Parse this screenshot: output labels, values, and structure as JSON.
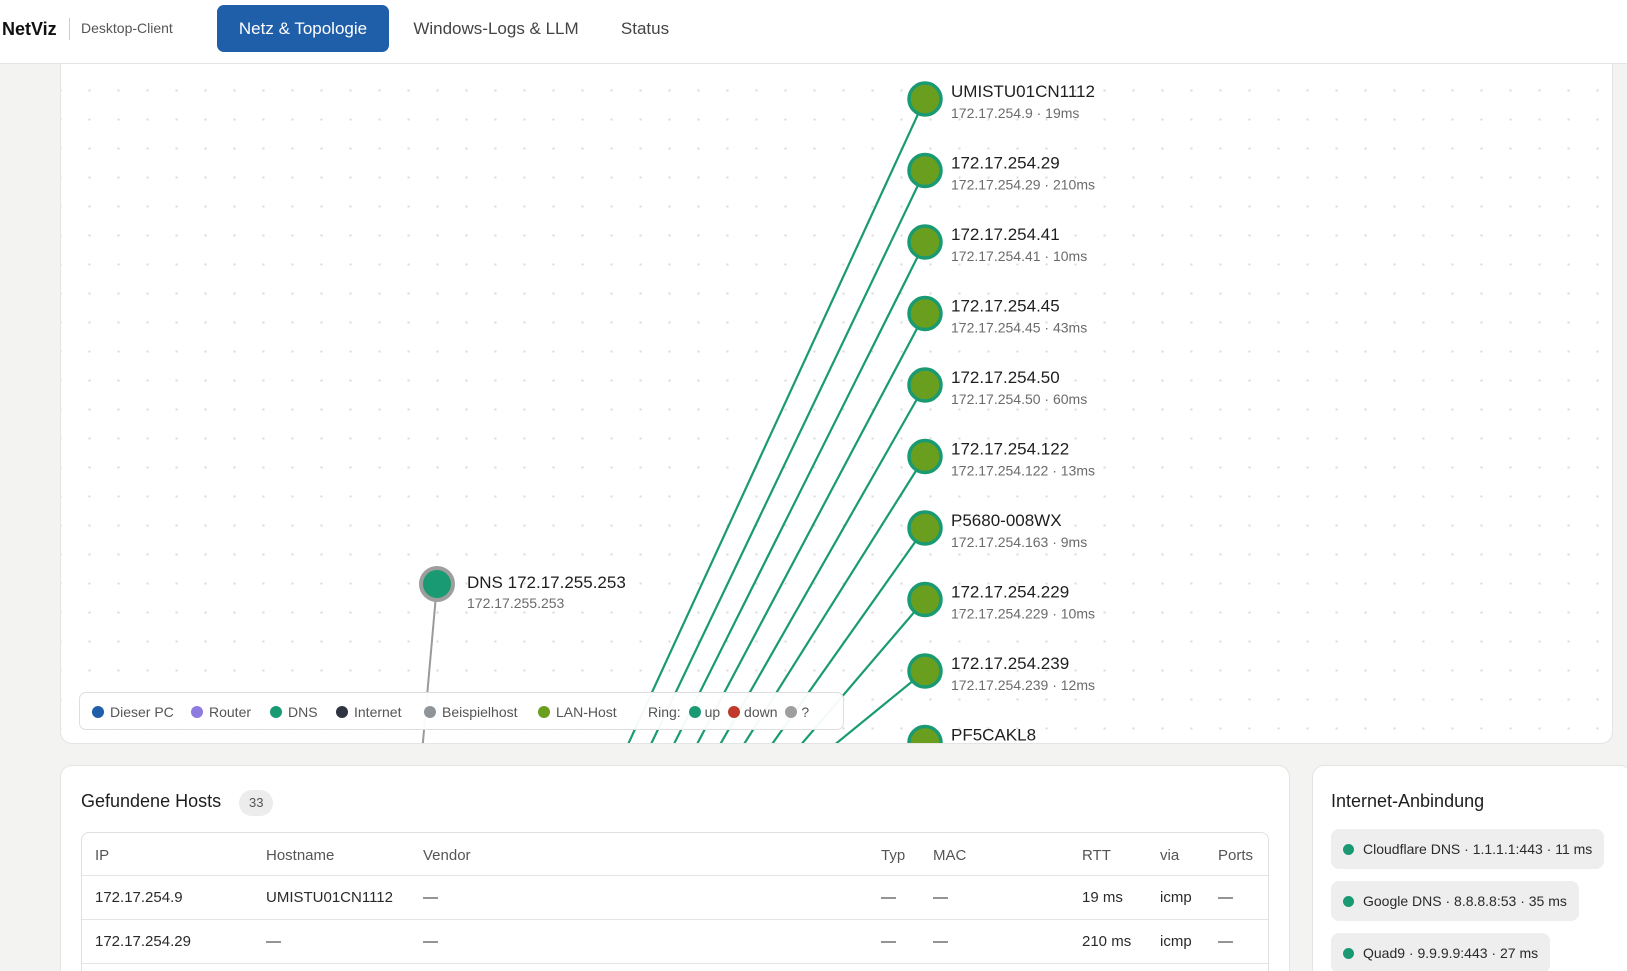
{
  "app": {
    "brand": "NetViz",
    "subtitle": "Desktop-Client"
  },
  "tabs": [
    {
      "label": "Netz & Topologie",
      "active": true
    },
    {
      "label": "Windows-Logs & LLM",
      "active": false
    },
    {
      "label": "Status",
      "active": false
    }
  ],
  "colors": {
    "primary": "#1f5ea8",
    "dns": "#1a9a73",
    "lan_host": "#6a9e1f",
    "ring_up": "#1a9a73",
    "ring_down": "#c0392b",
    "ring_unknown": "#9e9e9e",
    "edge": "#1a9a73"
  },
  "topology": {
    "dns_node": {
      "title": "DNS 172.17.255.253",
      "sub": "172.17.255.253"
    },
    "hosts": [
      {
        "title": "UMISTU01CN1112",
        "sub": "172.17.254.9 · 19ms"
      },
      {
        "title": "172.17.254.29",
        "sub": "172.17.254.29 · 210ms"
      },
      {
        "title": "172.17.254.41",
        "sub": "172.17.254.41 · 10ms"
      },
      {
        "title": "172.17.254.45",
        "sub": "172.17.254.45 · 43ms"
      },
      {
        "title": "172.17.254.50",
        "sub": "172.17.254.50 · 60ms"
      },
      {
        "title": "172.17.254.122",
        "sub": "172.17.254.122 · 13ms"
      },
      {
        "title": "P5680-008WX",
        "sub": "172.17.254.163 · 9ms"
      },
      {
        "title": "172.17.254.229",
        "sub": "172.17.254.229 · 10ms"
      },
      {
        "title": "172.17.254.239",
        "sub": "172.17.254.239 · 12ms"
      },
      {
        "title": "PF5CAKL8",
        "sub": ""
      }
    ],
    "legend": {
      "items": [
        "Dieser PC",
        "Router",
        "DNS",
        "Internet",
        "Beispielhost",
        "LAN-Host"
      ],
      "item_colors": [
        "#1f5ea8",
        "#8e7be0",
        "#1a9a73",
        "#2f3442",
        "#8f9499",
        "#6a9e1f"
      ],
      "ring_label": "Ring:",
      "ring_up": "up",
      "ring_down": "down",
      "ring_unknown": "?"
    }
  },
  "hosts_panel": {
    "title": "Gefundene Hosts",
    "count": "33",
    "columns": [
      "IP",
      "Hostname",
      "Vendor",
      "Typ",
      "MAC",
      "RTT",
      "via",
      "Ports"
    ],
    "rows": [
      [
        "172.17.254.9",
        "UMISTU01CN1112",
        "—",
        "—",
        "—",
        "19 ms",
        "icmp",
        "—"
      ],
      [
        "172.17.254.29",
        "—",
        "—",
        "—",
        "—",
        "210 ms",
        "icmp",
        "—"
      ]
    ]
  },
  "internet_panel": {
    "title": "Internet-Anbindung",
    "items": [
      "Cloudflare DNS · 1.1.1.1:443 · 11 ms",
      "Google DNS · 8.8.8.8:53 · 35 ms",
      "Quad9 · 9.9.9.9:443 · 27 ms"
    ]
  }
}
